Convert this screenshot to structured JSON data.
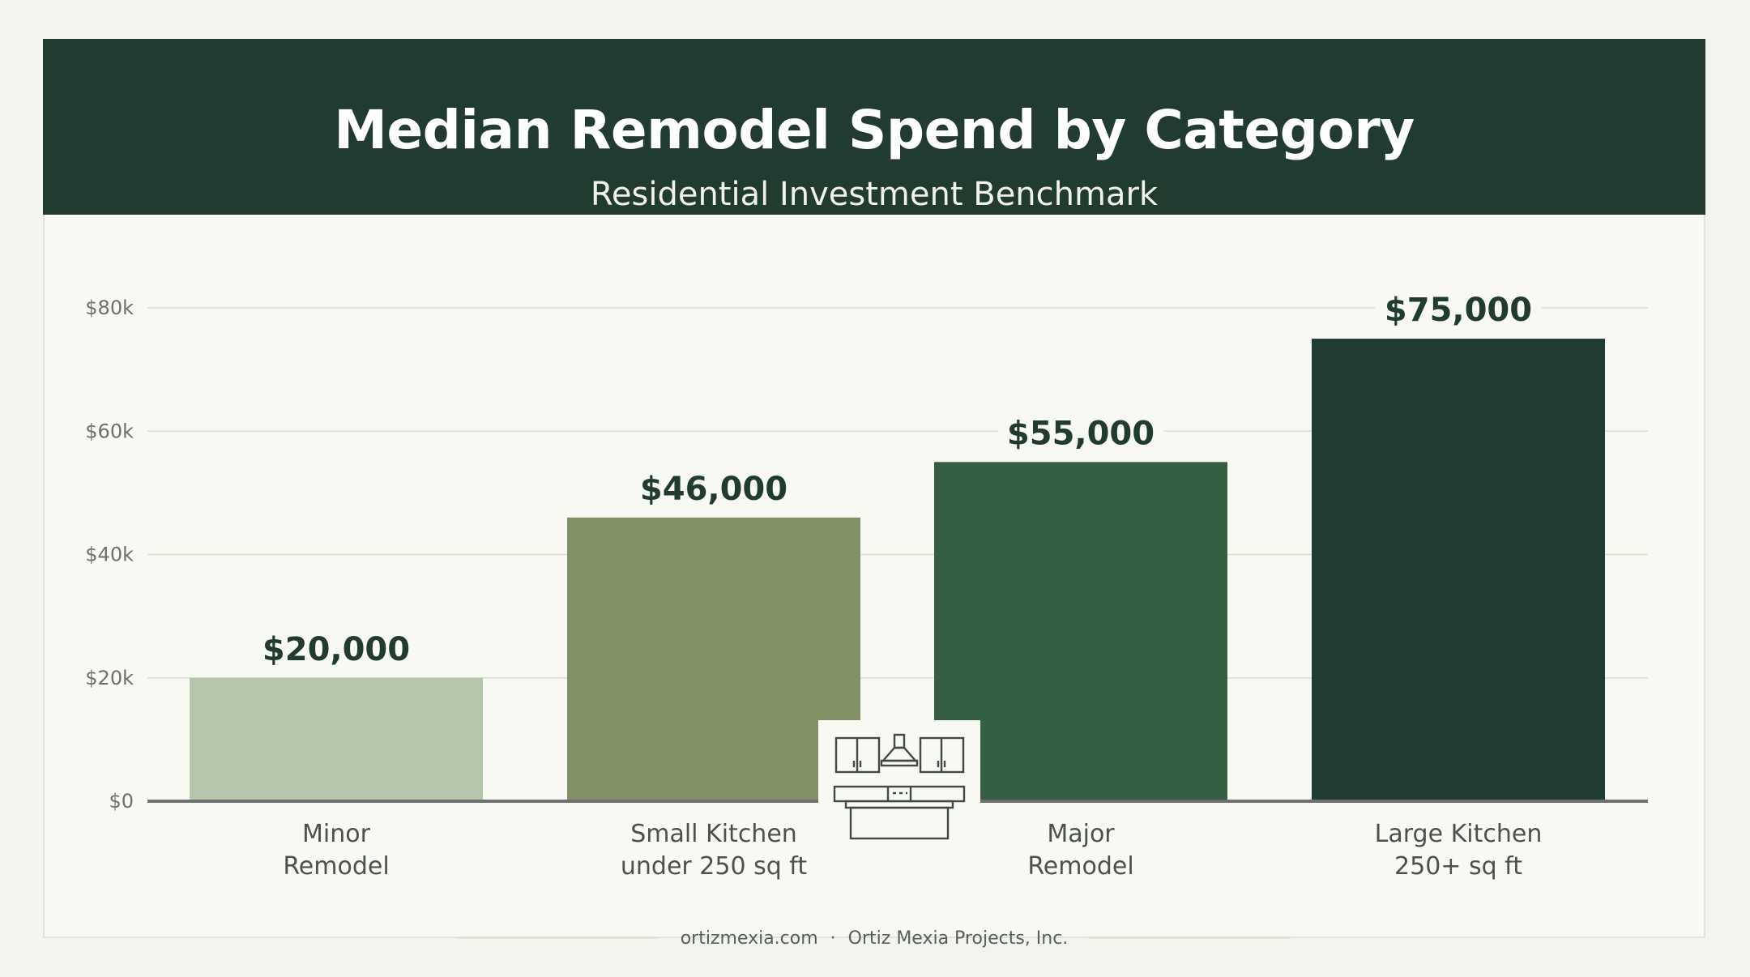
{
  "header": {
    "title": "Median Remodel Spend by Category",
    "subtitle": "Residential Investment Benchmark"
  },
  "footer": {
    "website": "ortizmexia.com",
    "separator": "·",
    "company": "Ortiz Mexia Projects, Inc."
  },
  "colors": {
    "header_bg": "#213b31",
    "bar_1": "#b3c6ab",
    "bar_2": "#819065",
    "bar_3": "#345f42",
    "bar_4": "#213d33",
    "label_text": "#213b31"
  },
  "icons": [
    "kitchen-icon"
  ],
  "chart_data": {
    "type": "bar",
    "categories": [
      [
        "Minor",
        "Remodel"
      ],
      [
        "Small Kitchen",
        "under 250 sq ft"
      ],
      [
        "Major",
        "Remodel"
      ],
      [
        "Large Kitchen",
        "250+ sq ft"
      ]
    ],
    "values": [
      20000,
      46000,
      55000,
      75000
    ],
    "value_labels": [
      "$20,000",
      "$46,000",
      "$55,000",
      "$75,000"
    ],
    "ylim": [
      0,
      80000
    ],
    "yticks": [
      0,
      20000,
      40000,
      60000,
      80000
    ],
    "ytick_labels": [
      "$0",
      "$20k",
      "$40k",
      "$60k",
      "$80k"
    ],
    "grid": true,
    "title": "Median Remodel Spend by Category",
    "xlabel": "",
    "ylabel": ""
  }
}
